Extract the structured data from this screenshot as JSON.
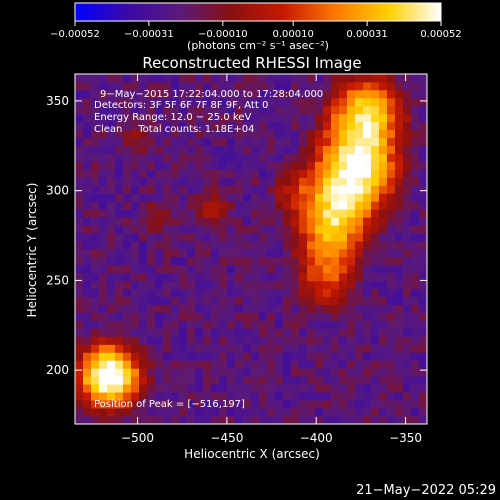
{
  "chart_data": {
    "type": "heatmap",
    "title": "Reconstructed RHESSI Image",
    "xlabel": "Heliocentric X (arcsec)",
    "ylabel": "Heliocentric Y (arcsec)",
    "xlim": [
      -535,
      -338
    ],
    "ylim": [
      170,
      365
    ],
    "xticks": [
      -500,
      -450,
      -400,
      -350
    ],
    "yticks": [
      200,
      250,
      300,
      350
    ],
    "x_tick_labels": [
      "−500",
      "−450",
      "−400",
      "−350"
    ],
    "y_tick_labels": [
      "200",
      "250",
      "300",
      "350"
    ],
    "colorbar": {
      "range": [
        -0.00052,
        0.00052
      ],
      "tick_values": [
        -0.00052,
        -0.00031,
        -0.0001,
        0.0001,
        0.00031,
        0.00052
      ],
      "tick_labels": [
        "−0.00052",
        "−0.00031",
        "−0.00010",
        "0.00010",
        "0.00031",
        "0.00052"
      ],
      "units_label": "(photons cm⁻² s⁻¹ asec⁻²)",
      "colormap": [
        "#0000ff",
        "#3a0aa8",
        "#5a1a7a",
        "#8a1010",
        "#c81a00",
        "#ff7a00",
        "#ffd000",
        "#ffffff"
      ]
    },
    "annotations": {
      "time_range": "9−May−2015 17:22:04.000 to 17:28:04.000",
      "detectors": "Detectors: 3F 5F 6F 7F 8F 9F, Att 0",
      "energy_range": "Energy Range: 12.0 − 25.0 keV",
      "clean_counts": "Clean     Total counts: 1.18E+04",
      "peak": "Position of Peak = [−516,197]"
    },
    "peak_position": [
      -516,
      197
    ],
    "sources": [
      {
        "x": -516,
        "y": 197,
        "amplitude": 1.0,
        "width": 14
      },
      {
        "x": -378,
        "y": 310,
        "amplitude": 0.85,
        "width": 18
      },
      {
        "x": -372,
        "y": 345,
        "amplitude": 0.7,
        "width": 16
      },
      {
        "x": -392,
        "y": 280,
        "amplitude": 0.6,
        "width": 15
      },
      {
        "x": -395,
        "y": 250,
        "amplitude": 0.45,
        "width": 14
      },
      {
        "x": -458,
        "y": 290,
        "amplitude": 0.35,
        "width": 10
      },
      {
        "x": -490,
        "y": 285,
        "amplitude": 0.3,
        "width": 9
      },
      {
        "x": -500,
        "y": 330,
        "amplitude": 0.28,
        "width": 10
      },
      {
        "x": -415,
        "y": 300,
        "amplitude": 0.25,
        "width": 10
      }
    ]
  },
  "footer": {
    "timestamp": "21−May−2022 05:29"
  }
}
